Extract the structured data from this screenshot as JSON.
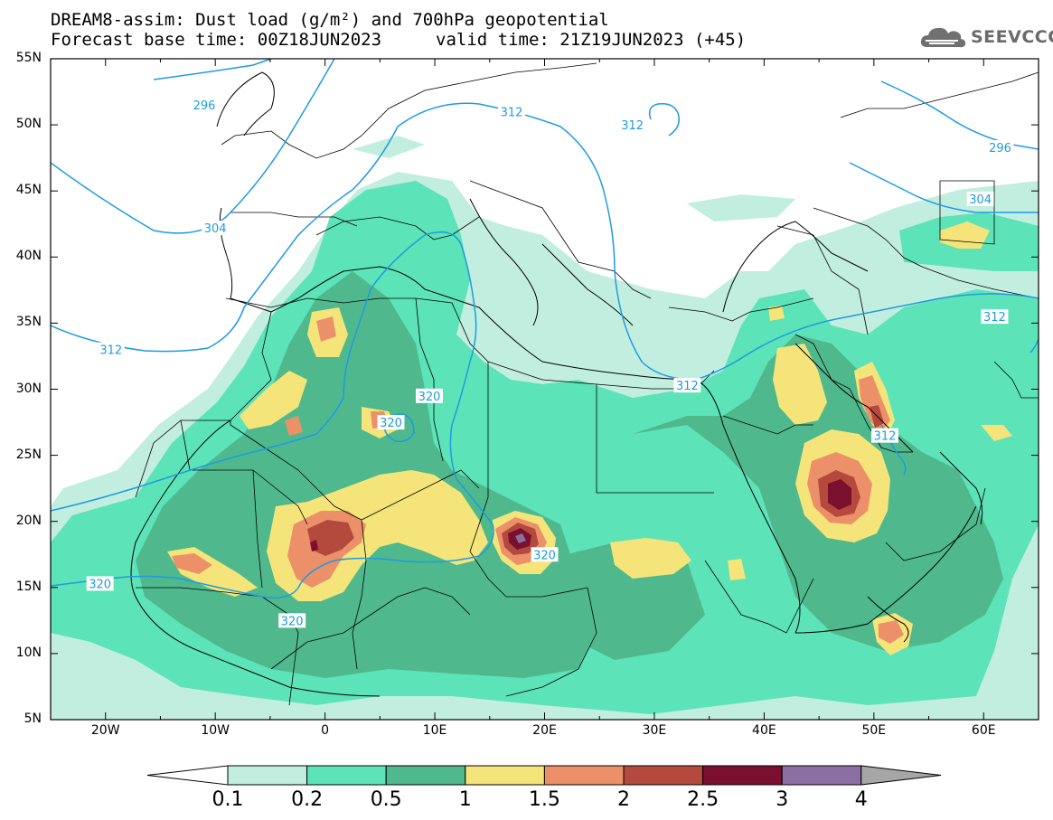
{
  "header": {
    "line1": "DREAM8-assim: Dust load (g/m²) and 700hPa geopotential",
    "line2a": "Forecast base time: 00Z18JUN2023",
    "line2b": "valid time: 21Z19JUN2023 (+45)",
    "logo_text": "SEEVCCC",
    "logo_icon": "cloud-icon"
  },
  "map": {
    "lat_labels": [
      "55N",
      "50N",
      "45N",
      "40N",
      "35N",
      "30N",
      "25N",
      "20N",
      "15N",
      "10N",
      "5N"
    ],
    "lon_labels": [
      "20W",
      "10W",
      "0",
      "10E",
      "20E",
      "30E",
      "40E",
      "50E",
      "60E"
    ],
    "lat_range": [
      5,
      55
    ],
    "lon_range": [
      -25,
      65
    ],
    "contour_labels": [
      {
        "text": "296",
        "lon": -11,
        "lat": 51.5
      },
      {
        "text": "304",
        "lon": -10,
        "lat": 42.2
      },
      {
        "text": "312",
        "lon": -19.5,
        "lat": 33
      },
      {
        "text": "312",
        "lon": 17,
        "lat": 51
      },
      {
        "text": "312",
        "lon": 28,
        "lat": 50
      },
      {
        "text": "312",
        "lon": 33,
        "lat": 30.3
      },
      {
        "text": "312",
        "lon": 51,
        "lat": 26.5
      },
      {
        "text": "312",
        "lon": 61,
        "lat": 35.5
      },
      {
        "text": "296",
        "lon": 61.5,
        "lat": 48.3
      },
      {
        "text": "304",
        "lon": 59.7,
        "lat": 44.4
      },
      {
        "text": "320",
        "lon": 9.5,
        "lat": 29.5
      },
      {
        "text": "320",
        "lon": 6,
        "lat": 27.5
      },
      {
        "text": "320",
        "lon": -3,
        "lat": 12.5
      },
      {
        "text": "320",
        "lon": 20,
        "lat": 17.5
      },
      {
        "text": "320",
        "lon": -20.5,
        "lat": 15.3
      }
    ]
  },
  "colorbar": {
    "labels": [
      "0.1",
      "0.2",
      "0.5",
      "1",
      "1.5",
      "2",
      "2.5",
      "3",
      "4"
    ],
    "colors": [
      "#c1eedf",
      "#5de3b8",
      "#4fb98d",
      "#f5e47a",
      "#ec906a",
      "#b44a3d",
      "#7a0f2e",
      "#8b6ea3"
    ],
    "end_left_color": "#ffffff",
    "end_right_color": "#a6a6a6"
  },
  "colors": {
    "contour": "#1e9be0",
    "land": "#ffffff",
    "frame": "#000000"
  }
}
